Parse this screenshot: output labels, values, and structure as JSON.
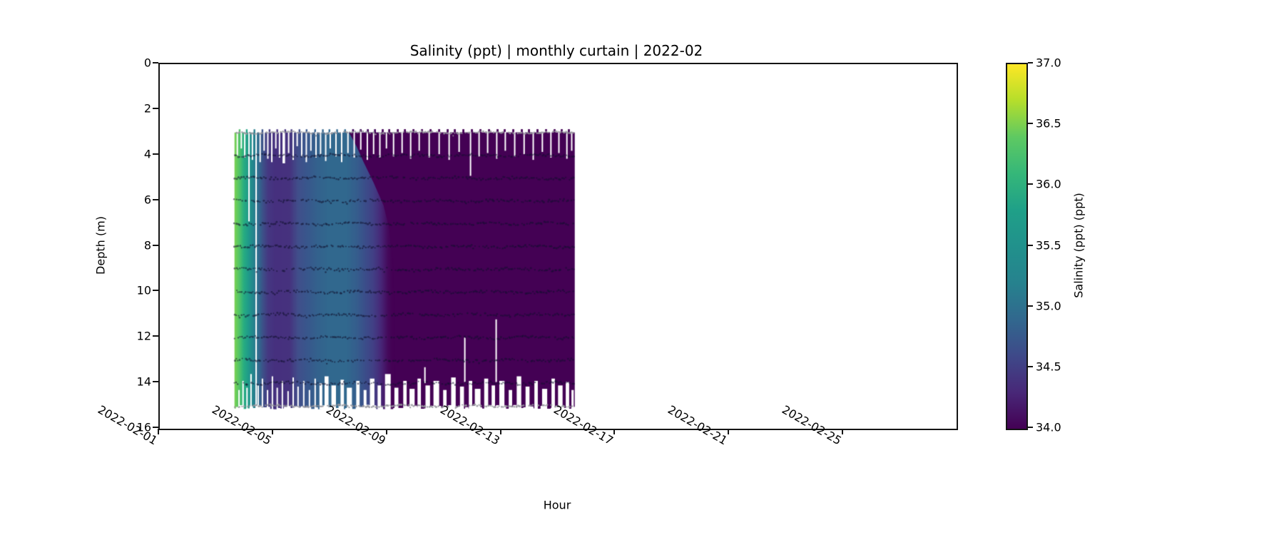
{
  "title": "Salinity (ppt) | monthly curtain | 2022-02",
  "x_axis": {
    "label": "Hour",
    "tick_labels": [
      "2022-02-01",
      "2022-02-05",
      "2022-02-09",
      "2022-02-13",
      "2022-02-17",
      "2022-02-21",
      "2022-02-25"
    ],
    "tick_days": [
      0,
      4,
      8,
      12,
      16,
      20,
      24
    ],
    "start_date": "2022-02-01",
    "span_days": 27.95
  },
  "y_axis": {
    "label": "Depth (m)",
    "tick_values": [
      0,
      2,
      4,
      6,
      8,
      10,
      12,
      14,
      16
    ],
    "min": 0,
    "max": 16,
    "inverted": true
  },
  "colorbar": {
    "label": "Salinity (ppt) (ppt)",
    "min": 34.0,
    "max": 37.0,
    "tick_values": [
      34.0,
      34.5,
      35.0,
      35.5,
      36.0,
      36.5,
      37.0
    ],
    "tick_labels": [
      "34.0",
      "34.5",
      "35.0",
      "35.5",
      "36.0",
      "36.5",
      "37.0"
    ],
    "colormap": "viridis",
    "stops_top_to_bottom": [
      "#fde725",
      "#b5de2b",
      "#5ec962",
      "#35b779",
      "#1fa088",
      "#21918c",
      "#26828e",
      "#31688e",
      "#3e4989",
      "#482878",
      "#440154"
    ]
  },
  "chart_data": {
    "type": "heatmap",
    "title": "Salinity (ppt) | monthly curtain | 2022-02",
    "xlabel": "Hour",
    "ylabel": "Depth (m)",
    "xlim": [
      "2022-02-01 00:00",
      "2022-02-28 23:00"
    ],
    "ylim": [
      16,
      0
    ],
    "value_label": "Salinity (ppt) (ppt)",
    "value_range": [
      34.0,
      37.0
    ],
    "sensor_depths_m": [
      3,
      4,
      5,
      6,
      7,
      8,
      9,
      10,
      11,
      12,
      13,
      14,
      15
    ],
    "data_day_start": 2.62,
    "data_day_end": 14.55,
    "depth_top": 3.0,
    "depth_bottom": 15.05,
    "salinity_timeline": [
      [
        "2022-02-03 15:00",
        36.5
      ],
      [
        "2022-02-04 00:00",
        35.9
      ],
      [
        "2022-02-04 08:00",
        35.4
      ],
      [
        "2022-02-04 19:00",
        34.5
      ],
      [
        "2022-02-05 12:00",
        34.4
      ],
      [
        "2022-02-06 12:00",
        35.0
      ],
      [
        "2022-02-07 12:00",
        35.1
      ],
      [
        "2022-02-08 06:00",
        34.6
      ],
      [
        "2022-02-09 00:00",
        34.1
      ],
      [
        "2022-02-09 12:00",
        34.0
      ],
      [
        "2022-02-15 13:00",
        34.0
      ]
    ],
    "gradient_stops": [
      [
        2.62,
        "#7ad151"
      ],
      [
        2.78,
        "#54c568"
      ],
      [
        2.95,
        "#27ad81"
      ],
      [
        3.12,
        "#1f998a"
      ],
      [
        3.3,
        "#26828e"
      ],
      [
        3.48,
        "#31688e"
      ],
      [
        3.62,
        "#3d5088"
      ],
      [
        3.8,
        "#453882"
      ],
      [
        4.05,
        "#46307e"
      ],
      [
        4.55,
        "#46327e"
      ],
      [
        4.85,
        "#414f8b"
      ],
      [
        5.15,
        "#39568c"
      ],
      [
        5.5,
        "#34618d"
      ],
      [
        5.9,
        "#31688e"
      ],
      [
        6.55,
        "#31688e"
      ],
      [
        6.9,
        "#355e8d"
      ],
      [
        7.2,
        "#3b4e8a"
      ],
      [
        7.5,
        "#423f85"
      ],
      [
        7.75,
        "#472878"
      ],
      [
        8.0,
        "#450a5c"
      ],
      [
        8.15,
        "#440154"
      ],
      [
        14.55,
        "#440154"
      ]
    ],
    "shallow_purple_boundary": [
      [
        6.55,
        2.8
      ],
      [
        6.9,
        3.6
      ],
      [
        7.15,
        4.3
      ],
      [
        7.5,
        5.2
      ],
      [
        7.85,
        6.2
      ],
      [
        8.05,
        7.2
      ],
      [
        8.2,
        9.0
      ],
      [
        8.25,
        15.3
      ],
      [
        14.7,
        15.3
      ],
      [
        14.7,
        2.8
      ]
    ],
    "top_spikes_days": [
      2.8,
      3.05,
      3.32,
      3.6,
      3.85,
      4.12,
      4.4,
      4.62,
      4.9,
      5.15,
      5.45,
      5.72,
      5.95,
      6.22,
      6.5,
      6.78,
      7.05,
      7.3,
      7.55,
      7.82,
      8.05,
      8.35,
      8.6,
      8.9,
      9.2,
      9.5,
      9.8,
      10.1,
      10.35,
      10.65,
      10.95,
      11.25,
      11.55,
      11.85,
      12.1,
      12.4,
      12.7,
      12.95,
      13.25,
      13.55,
      13.85,
      14.1,
      14.35
    ],
    "gaps_full_days": [
      3.38
    ],
    "gaps_mid": [
      [
        9.3,
        13.3,
        14.0
      ],
      [
        10.7,
        12.0,
        13.95
      ],
      [
        11.8,
        11.2,
        13.95
      ]
    ],
    "gaps_top": [
      [
        2.72,
        4.0
      ],
      [
        2.86,
        3.7
      ],
      [
        2.98,
        4.1
      ],
      [
        3.13,
        6.9
      ],
      [
        3.25,
        4.2
      ],
      [
        3.52,
        4.3
      ],
      [
        3.66,
        3.8
      ],
      [
        3.79,
        4.15
      ],
      [
        3.93,
        4.3
      ],
      [
        4.07,
        3.7
      ],
      [
        4.2,
        4.1
      ],
      [
        4.35,
        4.35,
        0.09
      ],
      [
        4.52,
        3.9
      ],
      [
        4.68,
        4.2
      ],
      [
        4.82,
        3.6
      ],
      [
        4.98,
        4.05
      ],
      [
        5.14,
        4.3
      ],
      [
        5.3,
        3.8
      ],
      [
        5.48,
        4.1
      ],
      [
        5.64,
        3.95
      ],
      [
        5.82,
        4.25
      ],
      [
        5.98,
        3.7
      ],
      [
        6.18,
        4.05
      ],
      [
        6.38,
        4.3
      ],
      [
        6.6,
        3.9
      ],
      [
        6.82,
        4.1
      ],
      [
        7.05,
        3.75
      ],
      [
        7.28,
        4.2
      ],
      [
        7.5,
        3.95
      ],
      [
        7.72,
        4.1
      ],
      [
        7.95,
        3.7
      ],
      [
        8.2,
        4.05
      ],
      [
        8.5,
        3.9
      ],
      [
        8.8,
        4.15
      ],
      [
        9.1,
        3.8
      ],
      [
        9.45,
        4.1
      ],
      [
        9.8,
        3.95
      ],
      [
        10.15,
        4.2
      ],
      [
        10.5,
        3.85
      ],
      [
        10.9,
        4.9
      ],
      [
        11.2,
        4.05
      ],
      [
        11.5,
        3.9
      ],
      [
        11.82,
        4.15
      ],
      [
        12.12,
        3.8
      ],
      [
        12.45,
        4.05
      ],
      [
        12.78,
        3.95
      ],
      [
        13.1,
        4.2
      ],
      [
        13.42,
        3.85
      ],
      [
        13.72,
        4.1
      ],
      [
        14.0,
        3.9
      ],
      [
        14.28,
        4.15
      ],
      [
        14.45,
        3.8
      ]
    ],
    "gaps_bottom": [
      [
        2.78,
        14.3,
        0.05
      ],
      [
        2.92,
        13.9,
        0.05
      ],
      [
        3.06,
        14.2,
        0.05
      ],
      [
        3.2,
        13.6,
        0.05
      ],
      [
        3.45,
        14.1,
        0.05
      ],
      [
        3.6,
        13.8,
        0.05
      ],
      [
        3.78,
        14.3,
        0.05
      ],
      [
        3.95,
        13.7,
        0.05
      ],
      [
        4.12,
        14.2,
        0.05
      ],
      [
        4.3,
        13.9,
        0.05
      ],
      [
        4.5,
        14.35,
        0.05
      ],
      [
        4.68,
        13.75,
        0.05
      ],
      [
        4.85,
        14.15,
        0.05
      ],
      [
        5.05,
        13.9,
        0.05
      ],
      [
        5.25,
        14.3,
        0.05
      ],
      [
        5.45,
        13.8,
        0.05
      ],
      [
        5.65,
        14.0,
        0.1
      ],
      [
        5.85,
        13.7,
        0.14
      ],
      [
        6.1,
        14.1,
        0.16
      ],
      [
        6.4,
        13.85,
        0.12
      ],
      [
        6.65,
        14.2,
        0.18
      ],
      [
        6.95,
        13.9,
        0.12
      ],
      [
        7.2,
        14.3,
        0.1
      ],
      [
        7.45,
        13.8,
        0.16
      ],
      [
        7.7,
        14.1,
        0.12
      ],
      [
        8.0,
        13.6,
        0.2
      ],
      [
        8.3,
        14.2,
        0.14
      ],
      [
        8.6,
        13.9,
        0.12
      ],
      [
        8.85,
        14.25,
        0.18
      ],
      [
        9.1,
        13.8,
        0.12
      ],
      [
        9.4,
        14.1,
        0.16
      ],
      [
        9.7,
        13.9,
        0.2
      ],
      [
        10.0,
        14.3,
        0.12
      ],
      [
        10.3,
        13.75,
        0.16
      ],
      [
        10.6,
        14.15,
        0.14
      ],
      [
        10.9,
        13.9,
        0.12
      ],
      [
        11.15,
        14.25,
        0.2
      ],
      [
        11.45,
        13.8,
        0.14
      ],
      [
        11.7,
        14.1,
        0.12
      ],
      [
        12.0,
        13.9,
        0.18
      ],
      [
        12.3,
        14.3,
        0.12
      ],
      [
        12.6,
        13.7,
        0.16
      ],
      [
        12.9,
        14.15,
        0.14
      ],
      [
        13.2,
        13.9,
        0.12
      ],
      [
        13.5,
        14.25,
        0.18
      ],
      [
        13.8,
        13.8,
        0.12
      ],
      [
        14.05,
        14.1,
        0.16
      ],
      [
        14.3,
        13.95,
        0.12
      ],
      [
        14.48,
        14.3,
        0.08
      ]
    ],
    "dot_rows": {
      "interior_depths": [
        4,
        5,
        6,
        7,
        8,
        9,
        10,
        11,
        12,
        13,
        14
      ],
      "edge_depths": [
        3,
        15
      ],
      "interior_color": "rgba(16,16,45,0.55)",
      "edge_color": "rgba(150,150,156,0.9)"
    }
  }
}
